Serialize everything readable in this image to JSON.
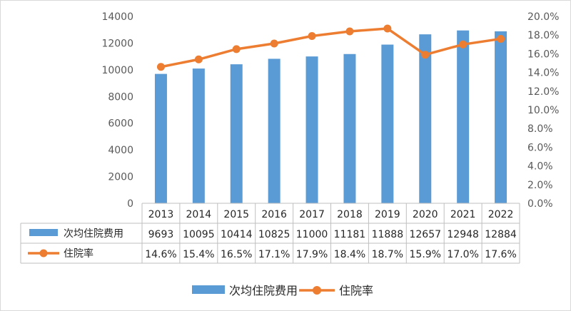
{
  "chart_data": {
    "type": "bar",
    "categories": [
      "2013",
      "2014",
      "2015",
      "2016",
      "2017",
      "2018",
      "2019",
      "2020",
      "2021",
      "2022"
    ],
    "series": [
      {
        "name": "次均住院费用",
        "type": "bar",
        "axis": "left",
        "values": [
          9693,
          10095,
          10414,
          10825,
          11000,
          11181,
          11888,
          12657,
          12948,
          12884
        ],
        "labels": [
          "9693",
          "10095",
          "10414",
          "10825",
          "11000",
          "11181",
          "11888",
          "12657",
          "12948",
          "12884"
        ]
      },
      {
        "name": "住院率",
        "type": "line",
        "axis": "right",
        "values": [
          14.6,
          15.4,
          16.5,
          17.1,
          17.9,
          18.4,
          18.7,
          15.9,
          17.0,
          17.6
        ],
        "labels": [
          "14.6%",
          "15.4%",
          "16.5%",
          "17.1%",
          "17.9%",
          "18.4%",
          "18.7%",
          "15.9%",
          "17.0%",
          "17.6%"
        ]
      }
    ],
    "y_left": {
      "ylim": [
        0,
        14000
      ],
      "ticks": [
        0,
        2000,
        4000,
        6000,
        8000,
        10000,
        12000,
        14000
      ],
      "tick_labels": [
        "0",
        "2000",
        "4000",
        "6000",
        "8000",
        "10000",
        "12000",
        "14000"
      ]
    },
    "y_right": {
      "ylim": [
        0,
        20
      ],
      "ticks": [
        0,
        2,
        4,
        6,
        8,
        10,
        12,
        14,
        16,
        18,
        20
      ],
      "tick_labels": [
        "0.0%",
        "2.0%",
        "4.0%",
        "6.0%",
        "8.0%",
        "10.0%",
        "12.0%",
        "14.0%",
        "16.0%",
        "18.0%",
        "20.0%"
      ]
    },
    "grid": false,
    "data_table": true,
    "legend_position": "bottom",
    "colors": {
      "bar": "#5b9bd5",
      "line": "#ed7d31",
      "axis": "#bfbfbf"
    }
  }
}
